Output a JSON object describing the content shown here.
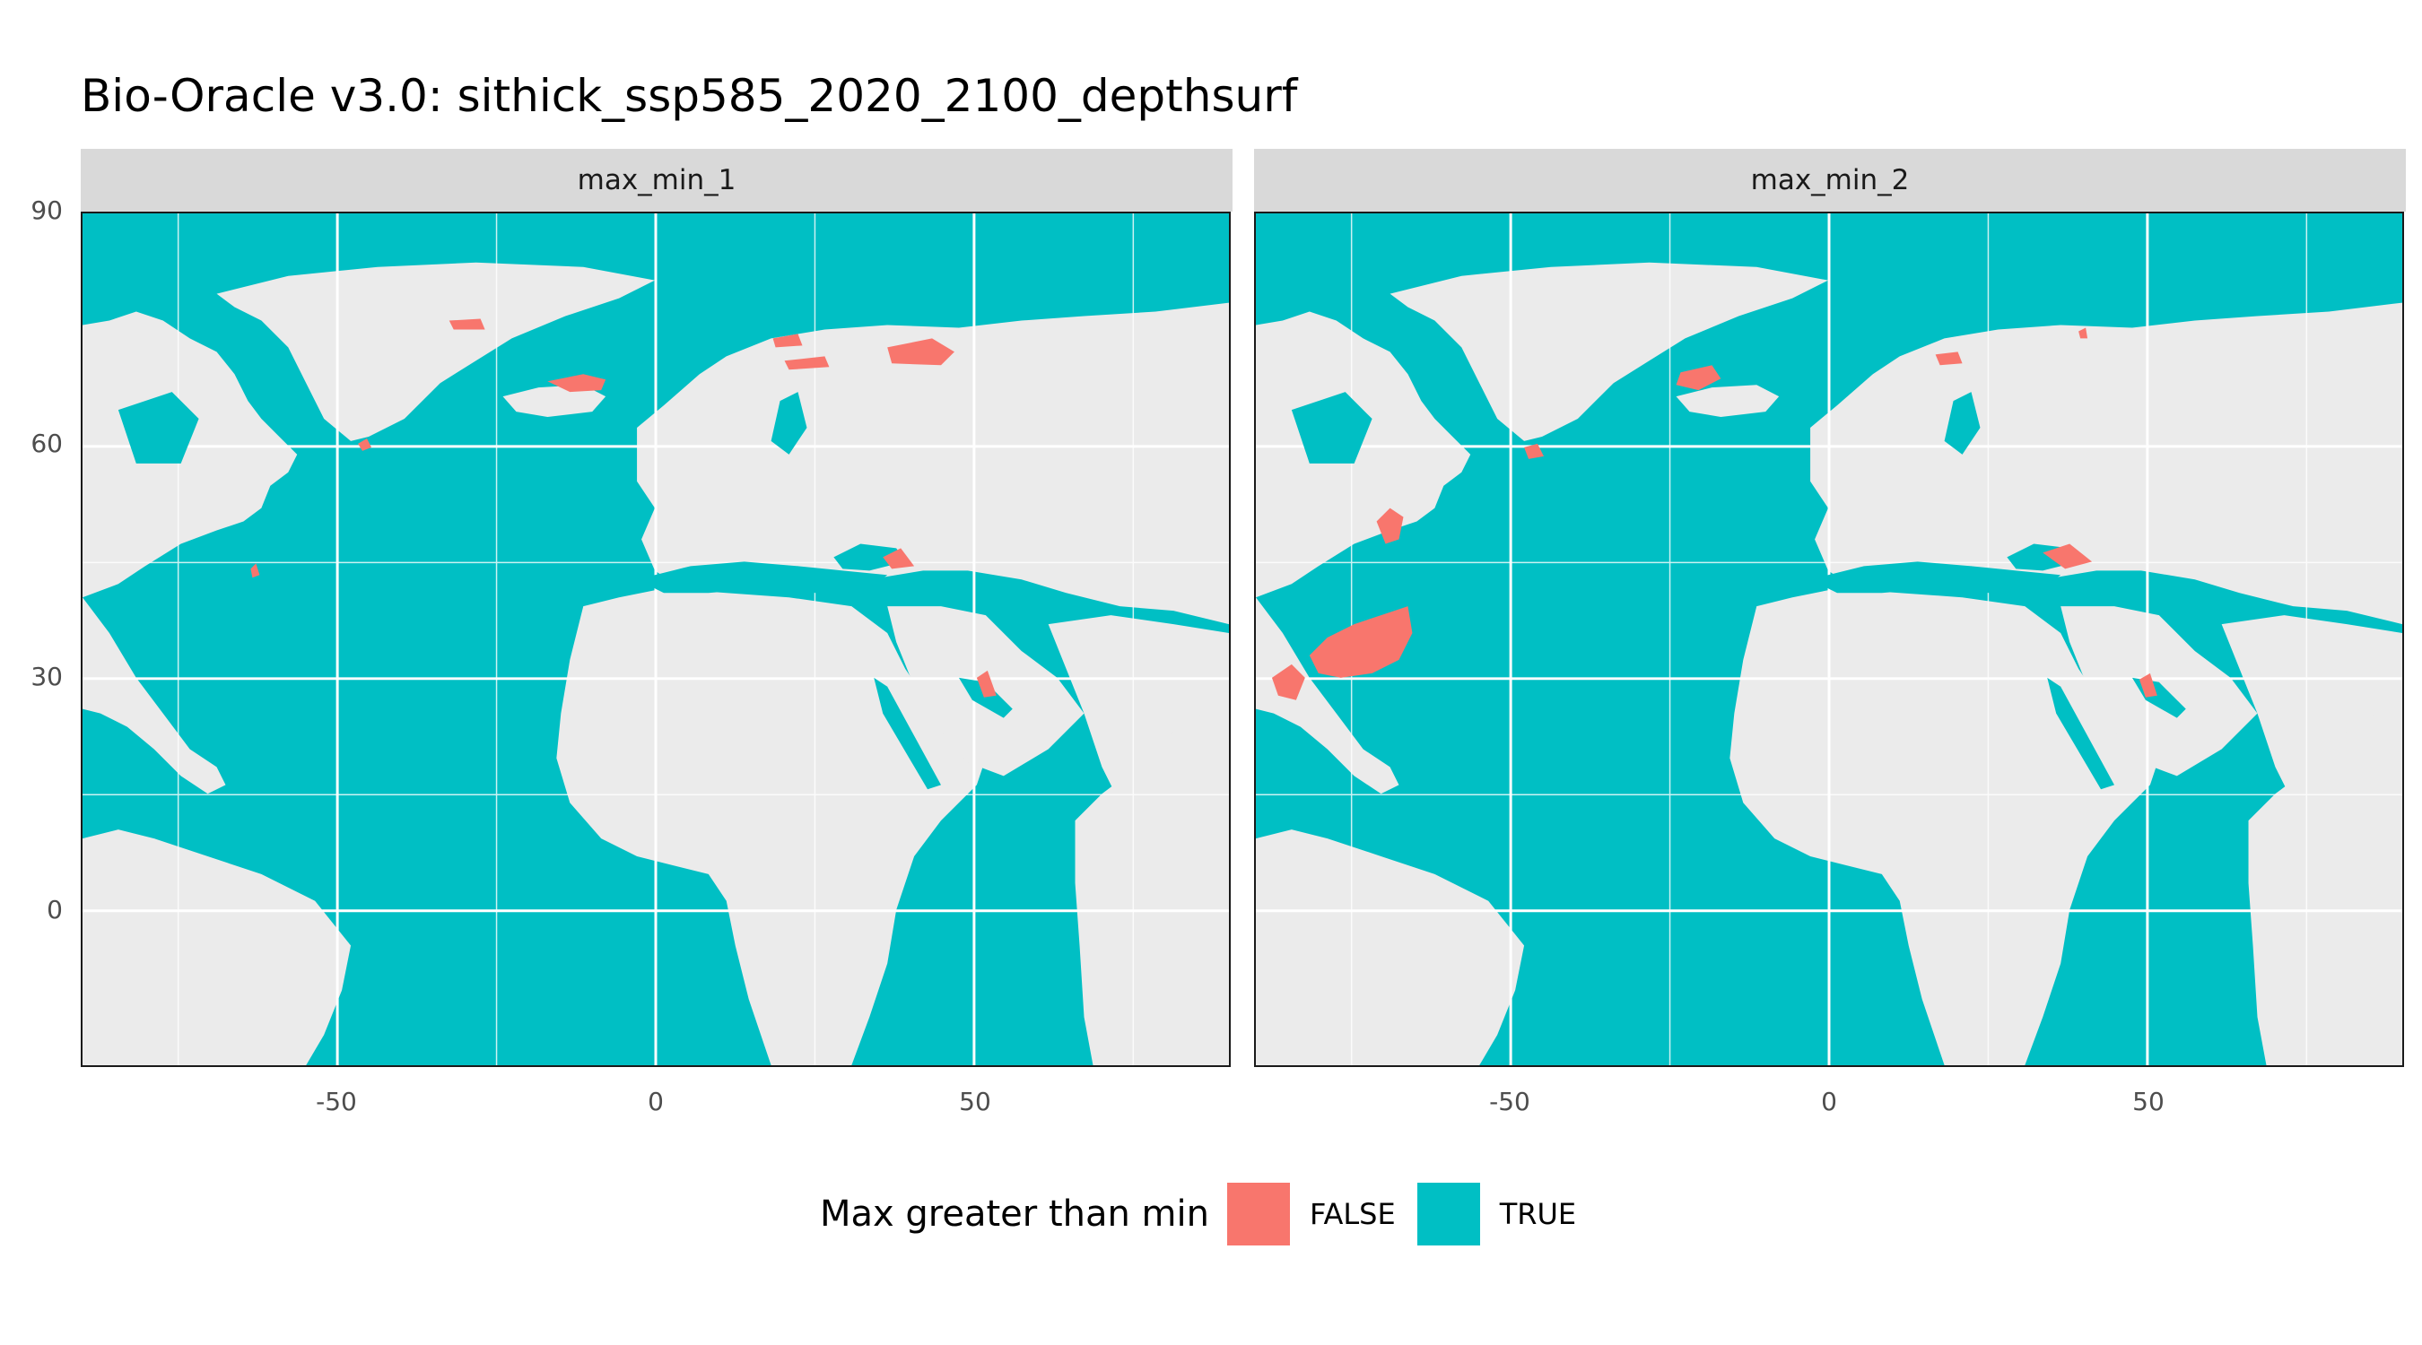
{
  "title": "Bio-Oracle v3.0: sithick_ssp585_2020_2100_depthsurf",
  "panels": [
    {
      "label": "max_min_1"
    },
    {
      "label": "max_min_2"
    }
  ],
  "axes": {
    "x_ticks": [
      "-50",
      "0",
      "50"
    ],
    "y_ticks": [
      "90",
      "60",
      "30",
      "0"
    ],
    "xlim": [
      -90,
      90
    ],
    "ylim": [
      -20,
      90
    ]
  },
  "legend": {
    "title": "Max greater than min",
    "items": [
      {
        "label": "FALSE",
        "color": "#F8766D"
      },
      {
        "label": "TRUE",
        "color": "#00BFC4"
      }
    ]
  },
  "colors": {
    "ocean": "#00BFC4",
    "land": "#EBEBEB",
    "flag": "#F8766D",
    "grid": "#ffffff"
  }
}
